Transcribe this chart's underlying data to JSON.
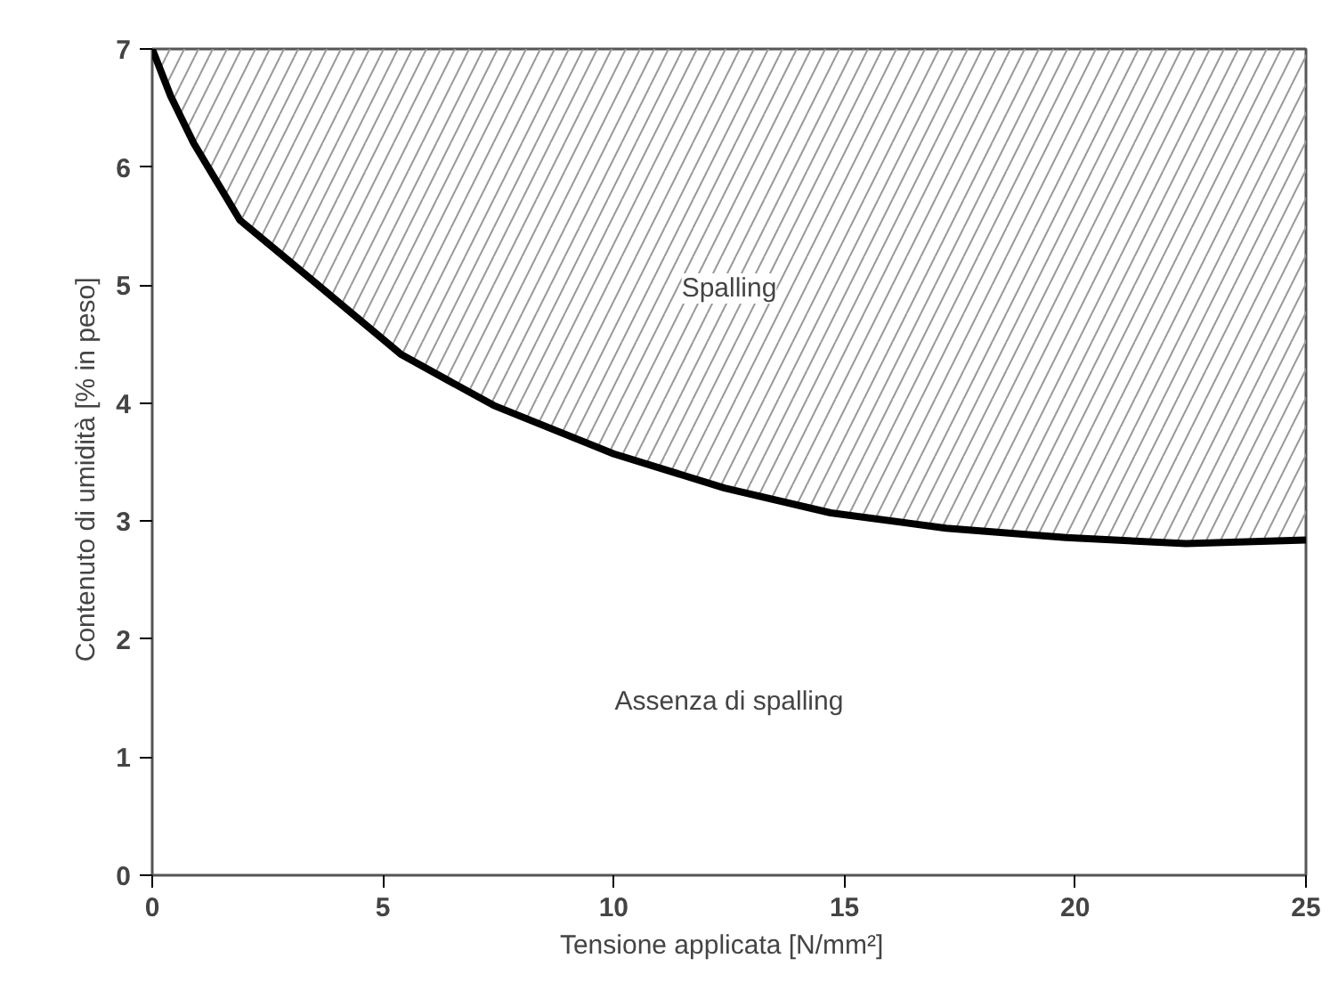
{
  "chart_data": {
    "type": "line",
    "xlabel": "Tensione applicata   [N/mm²]",
    "ylabel": "Contenuto di umidità   [% in peso]",
    "xlim": [
      0,
      25
    ],
    "ylim": [
      0,
      7
    ],
    "xticks": [
      0,
      5,
      10,
      15,
      20,
      25
    ],
    "yticks": [
      0,
      1,
      2,
      3,
      4,
      5,
      6,
      7
    ],
    "grid": false,
    "series": [
      {
        "color": "#000000",
        "x": [
          0,
          0.4,
          0.9,
          1.9,
          3.5,
          5.4,
          7.4,
          10,
          12.4,
          14.7,
          17.2,
          19.8,
          22.4,
          25
        ],
        "values": [
          7,
          6.6,
          6.2,
          5.55,
          5.03,
          4.41,
          3.98,
          3.57,
          3.28,
          3.07,
          2.94,
          2.86,
          2.81,
          2.84
        ],
        "lower": [
          7,
          6.6,
          6.2,
          5.55,
          5.03,
          4.41,
          3.98,
          3.57,
          3.28,
          3.07,
          2.94,
          2.86,
          2.81,
          2.84
        ],
        "upper": [
          7,
          7,
          7,
          7,
          7,
          7,
          7,
          7,
          7,
          7,
          7,
          7,
          7,
          7
        ]
      }
    ],
    "annotations": [
      "Spalling",
      "Assenza di spalling"
    ]
  }
}
